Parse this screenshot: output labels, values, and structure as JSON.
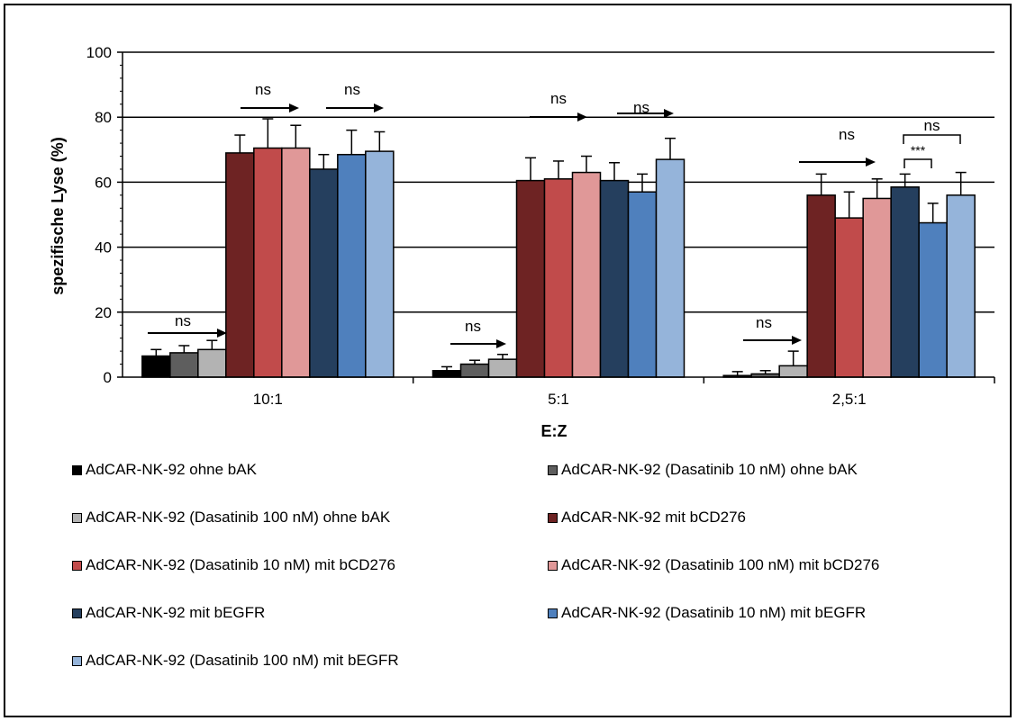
{
  "chart_data": {
    "type": "bar",
    "xlabel": "E:Z",
    "ylabel": "spezifische Lyse (%)",
    "ylim": [
      0,
      100
    ],
    "yticks": [
      0,
      20,
      40,
      60,
      80,
      100
    ],
    "grid": true,
    "categories": [
      "10:1",
      "5:1",
      "2,5:1"
    ],
    "series": [
      {
        "name": "AdCAR-NK-92 ohne bAK",
        "color": "#000000",
        "values": [
          6.5,
          2.0,
          0.5
        ],
        "errors": [
          2.0,
          1.2,
          1.2
        ]
      },
      {
        "name": "AdCAR-NK-92 (Dasatinib 10 nM) ohne bAK",
        "color": "#5e5e5e",
        "values": [
          7.5,
          4.0,
          1.0
        ],
        "errors": [
          2.2,
          1.2,
          1.0
        ]
      },
      {
        "name": "AdCAR-NK-92 (Dasatinib 100 nM) ohne bAK",
        "color": "#b3b3b3",
        "values": [
          8.5,
          5.5,
          3.5
        ],
        "errors": [
          2.8,
          1.5,
          4.5
        ]
      },
      {
        "name": "AdCAR-NK-92 mit bCD276",
        "color": "#6e2323",
        "values": [
          69.0,
          60.5,
          56.0
        ],
        "errors": [
          5.5,
          7.0,
          6.5
        ]
      },
      {
        "name": "AdCAR-NK-92 (Dasatinib 10 nM) mit bCD276",
        "color": "#c14b4b",
        "values": [
          70.5,
          61.0,
          49.0
        ],
        "errors": [
          9.0,
          5.5,
          8.0
        ]
      },
      {
        "name": "AdCAR-NK-92 (Dasatinib 100 nM) mit bCD276",
        "color": "#e09898",
        "values": [
          70.5,
          63.0,
          55.0
        ],
        "errors": [
          7.0,
          5.0,
          6.0
        ]
      },
      {
        "name": "AdCAR-NK-92 mit bEGFR",
        "color": "#253f5e",
        "values": [
          64.0,
          60.5,
          58.5
        ],
        "errors": [
          4.5,
          5.5,
          4.0
        ]
      },
      {
        "name": "AdCAR-NK-92 (Dasatinib 10 nM) mit bEGFR",
        "color": "#4f80bd",
        "values": [
          68.5,
          57.0,
          47.5
        ],
        "errors": [
          7.5,
          5.5,
          6.0
        ]
      },
      {
        "name": "AdCAR-NK-92 (Dasatinib 100 nM) mit bEGFR",
        "color": "#95b4da",
        "values": [
          69.5,
          67.0,
          56.0
        ],
        "errors": [
          6.0,
          6.5,
          7.0
        ]
      }
    ],
    "annotations": [
      "ns",
      "ns",
      "ns",
      "ns",
      "ns",
      "ns",
      "ns",
      "ns",
      "***",
      "ns"
    ]
  }
}
